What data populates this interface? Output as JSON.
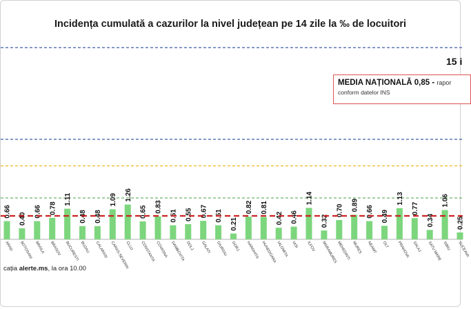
{
  "chart_data": {
    "type": "bar",
    "title": "Incidența cumulată a cazurilor la nivel județean pe 14 zile la ‰ de locuitori",
    "categories": [
      "ARAD",
      "BOTOSANI",
      "BRAILA",
      "BRASOV",
      "BUCURESTI",
      "BUZAU",
      "CALARASI",
      "CARAS-SEVERIN",
      "CLUJ",
      "CONSTANTA",
      "COVASNA",
      "DAMBOVITA",
      "DOLJ",
      "GALATI",
      "GIURGIU",
      "GORJ",
      "HARGHITA",
      "HUNEDOARA",
      "IALOMITA",
      "IASI",
      "ILFOV",
      "MARAMURES",
      "MEHEDINTI",
      "MURES",
      "NEAMT",
      "OLT",
      "PRAHOVA",
      "SALAJ",
      "SATU MARE",
      "SIBIU",
      "SUCEAVA"
    ],
    "values": [
      0.66,
      0.4,
      0.66,
      0.78,
      1.11,
      0.48,
      0.48,
      1.09,
      1.26,
      0.65,
      0.83,
      0.51,
      0.55,
      0.67,
      0.51,
      0.21,
      0.82,
      0.81,
      0.42,
      0.46,
      1.14,
      0.32,
      0.7,
      0.89,
      0.66,
      0.49,
      1.13,
      0.77,
      0.34,
      1.06,
      0.25
    ],
    "value_labels": [
      "0.66",
      "0.40",
      "0.66",
      "0.78",
      "1.11",
      "0.48",
      "0.48",
      "1.09",
      "1.26",
      "0.65",
      "0.83",
      "0.51",
      "0.55",
      "0.67",
      "0.51",
      "0.21",
      "0.82",
      "0.81",
      "0.42",
      "0.46",
      "1.14",
      "0.32",
      "0.70",
      "0.89",
      "0.66",
      "0.49",
      "1.13",
      "0.77",
      "0.34",
      "1.06",
      "0.25"
    ],
    "reference_lines": [
      {
        "label": "media națională",
        "value": 0.85,
        "color": "#cc2222",
        "style": "dashed"
      },
      {
        "value": 1.5,
        "color": "#6ab06a",
        "style": "dashed"
      },
      {
        "value": 3.0,
        "color": "#e8b820",
        "style": "dashed"
      },
      {
        "value": 4.0,
        "color": "#3a5aa8",
        "style": "dashed"
      },
      {
        "value": 6.5,
        "color": "#3a5aa8",
        "style": "dashed"
      }
    ],
    "bar_color": "#7dd67d",
    "grid": false,
    "legend": "none"
  },
  "date_text": "15 i",
  "media_box": {
    "label": "MEDIA NAȚIONALĂ",
    "value": "0,85 -",
    "note": "rapor",
    "source": "conform datelor INS"
  },
  "footer": {
    "prefix": "cația ",
    "site": "alerte.ms",
    "suffix": ", la ora 10.00"
  }
}
